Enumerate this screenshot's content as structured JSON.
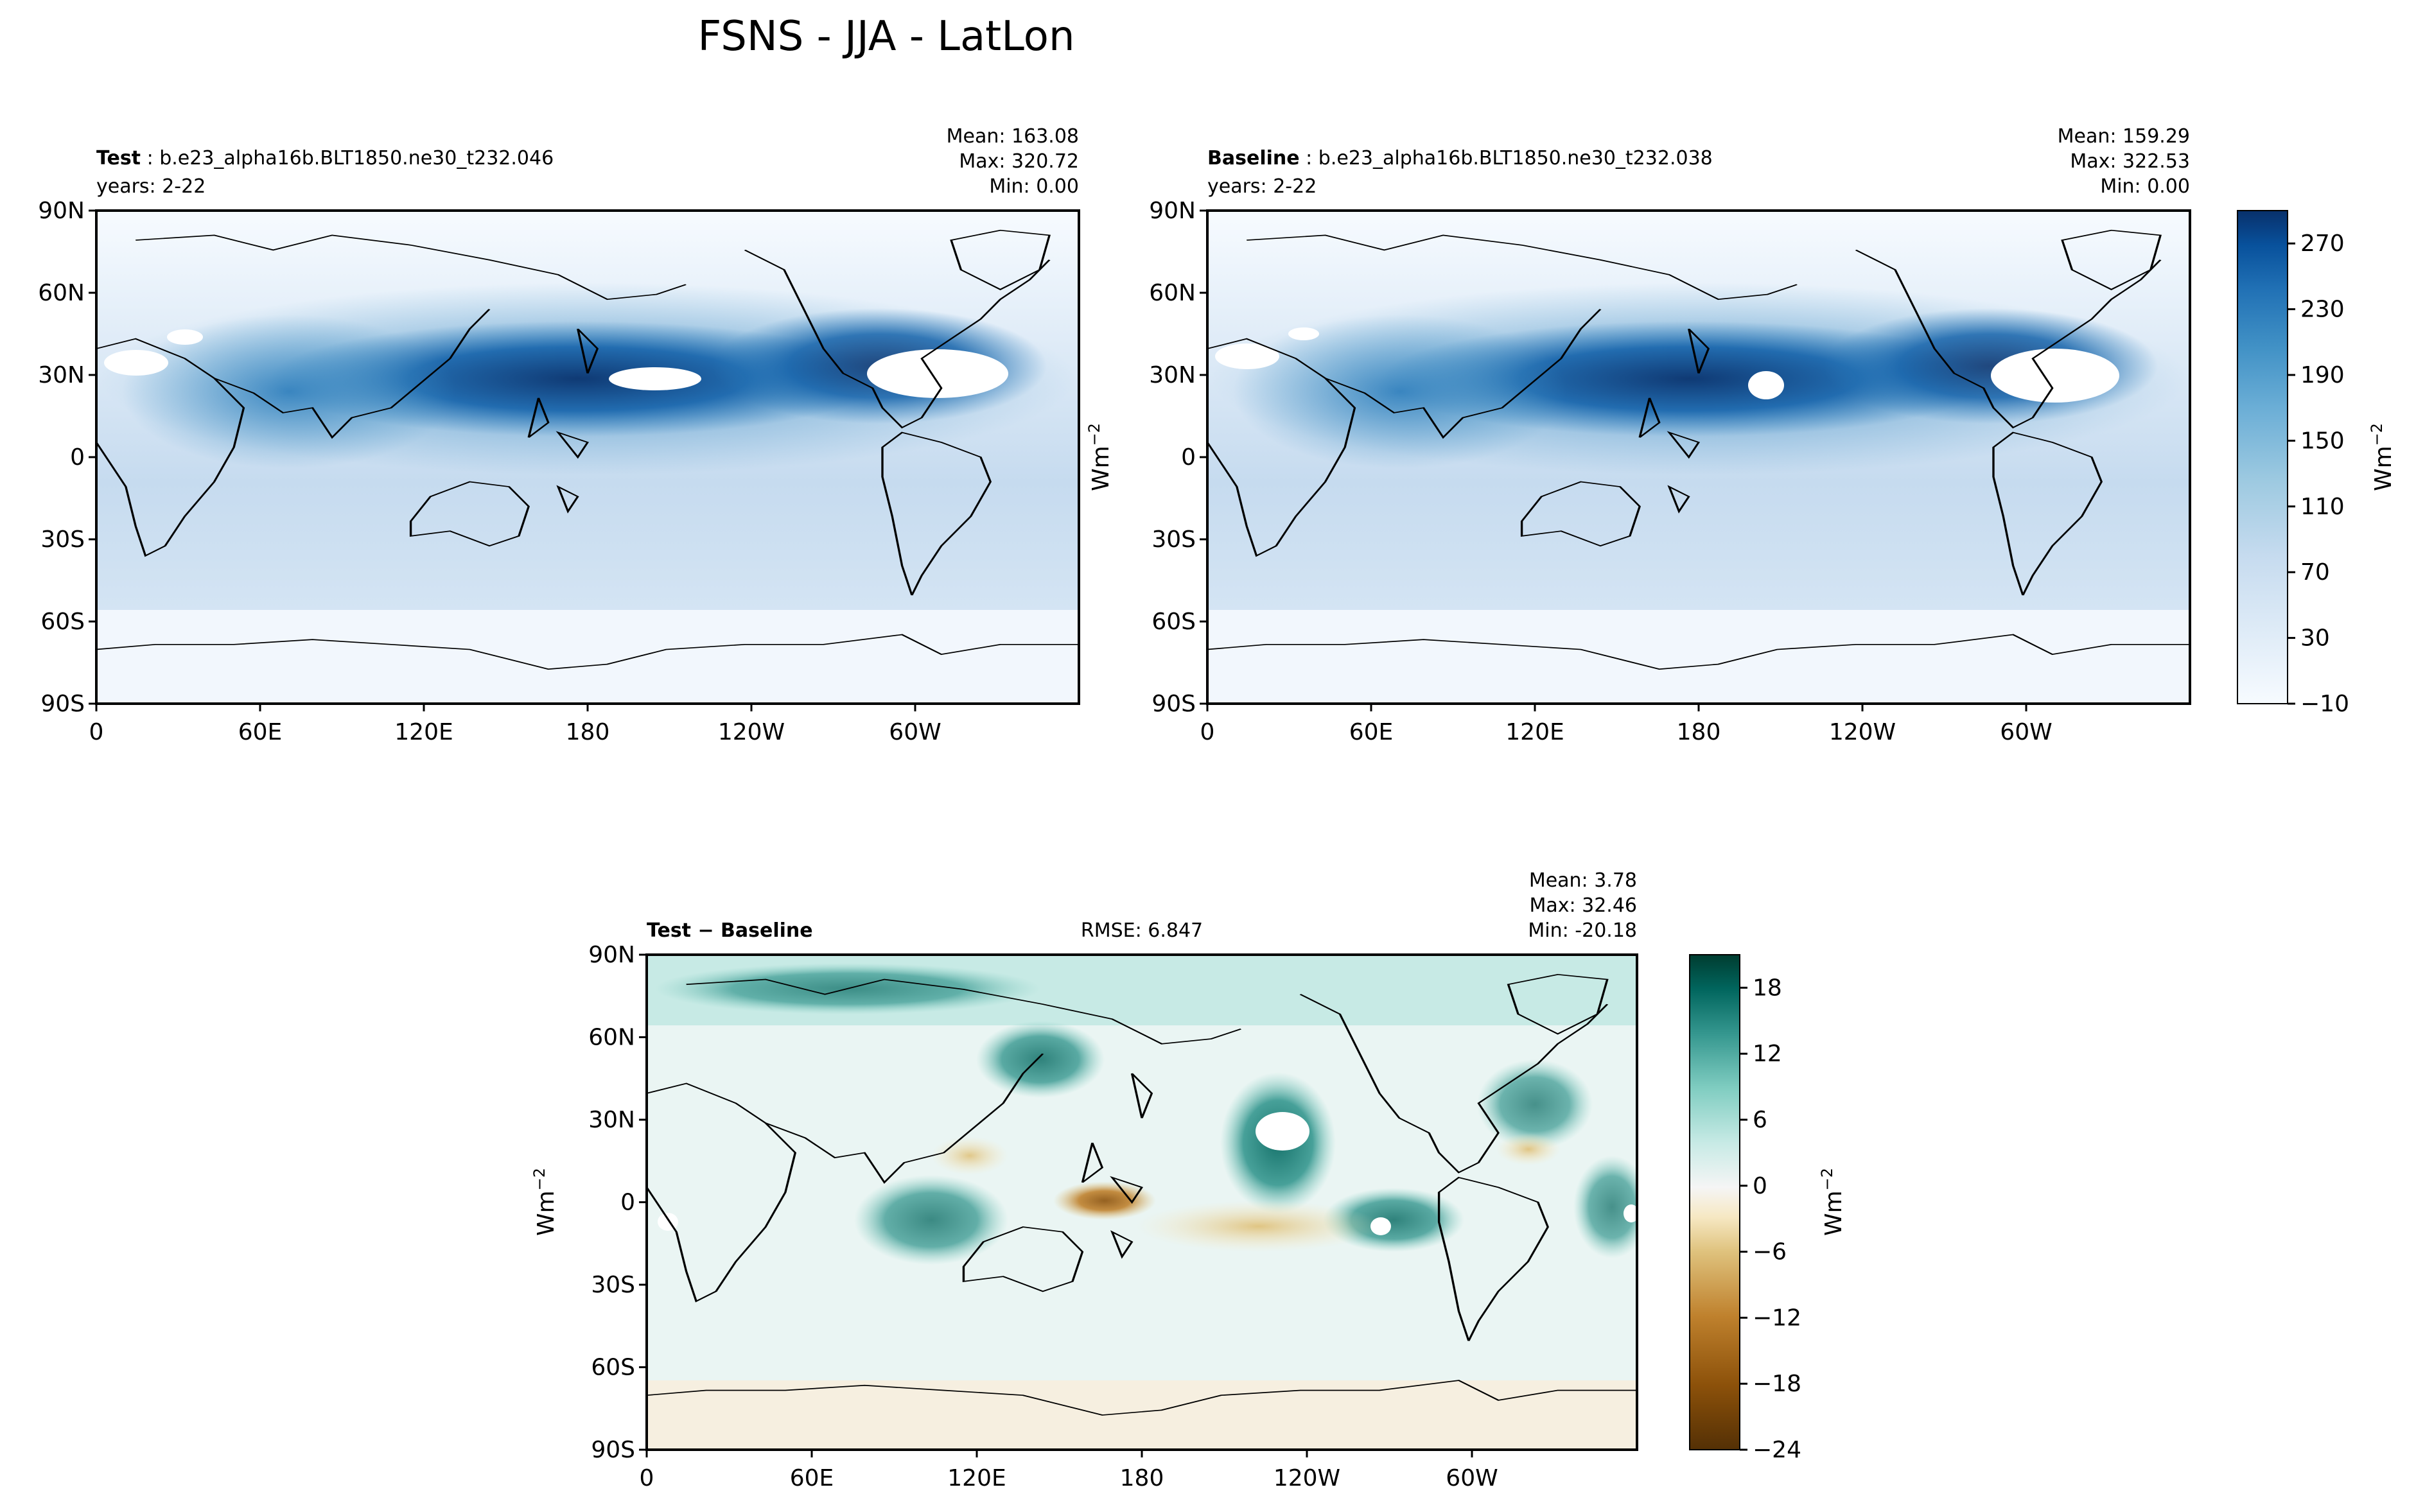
{
  "figure": {
    "title": "FSNS - JJA - LatLon"
  },
  "chart_data": [
    {
      "type": "heatmap",
      "panel": "test",
      "title_bold": "Test",
      "title_sep": " : ",
      "case": "b.e23_alpha16b.BLT1850.ne30_t232.046",
      "years": "years: 2-22",
      "stats": {
        "mean": "Mean: 163.08",
        "max": "Max: 320.72",
        "min": "Min:  0.00"
      },
      "xticks": [
        "0",
        "60E",
        "120E",
        "180",
        "120W",
        "60W"
      ],
      "xtick_values": [
        0,
        60,
        120,
        180,
        240,
        300
      ],
      "yticks": [
        "90N",
        "60N",
        "30N",
        "0",
        "30S",
        "60S",
        "90S"
      ],
      "ytick_values": [
        90,
        60,
        30,
        0,
        -30,
        -60,
        -90
      ],
      "xlim": [
        0,
        360
      ],
      "ylim": [
        -90,
        90
      ],
      "ylabel": "Wm$^{-2}$"
    },
    {
      "type": "heatmap",
      "panel": "baseline",
      "title_bold": "Baseline",
      "title_sep": " : ",
      "case": "b.e23_alpha16b.BLT1850.ne30_t232.038",
      "years": "years: 2-22",
      "stats": {
        "mean": "Mean: 159.29",
        "max": "Max: 322.53",
        "min": "Min:  0.00"
      },
      "xticks": [
        "0",
        "60E",
        "120E",
        "180",
        "120W",
        "60W"
      ],
      "xtick_values": [
        0,
        60,
        120,
        180,
        240,
        300
      ],
      "yticks": [
        "90N",
        "60N",
        "30N",
        "0",
        "30S",
        "60S",
        "90S"
      ],
      "ytick_values": [
        90,
        60,
        30,
        0,
        -30,
        -60,
        -90
      ],
      "xlim": [
        0,
        360
      ],
      "ylim": [
        -90,
        90
      ],
      "colorbar": {
        "label": "Wm$^{-2}$",
        "ticks": [
          "270",
          "230",
          "190",
          "150",
          "110",
          "70",
          "30",
          "−10"
        ],
        "tick_values": [
          270,
          230,
          190,
          150,
          110,
          70,
          30,
          -10
        ],
        "range": [
          -10,
          290
        ],
        "colormap": "Blues"
      }
    },
    {
      "type": "heatmap",
      "panel": "diff",
      "title_bold": "Test − Baseline",
      "rmse": "RMSE: 6.847",
      "stats": {
        "mean": "Mean:  3.78",
        "max": "Max: 32.46",
        "min": "Min: -20.18"
      },
      "xticks": [
        "0",
        "60E",
        "120E",
        "180",
        "120W",
        "60W"
      ],
      "xtick_values": [
        0,
        60,
        120,
        180,
        240,
        300
      ],
      "yticks": [
        "90N",
        "60N",
        "30N",
        "0",
        "30S",
        "60S",
        "90S"
      ],
      "ytick_values": [
        90,
        60,
        30,
        0,
        -30,
        -60,
        -90
      ],
      "xlim": [
        0,
        360
      ],
      "ylim": [
        -90,
        90
      ],
      "ylabel": "Wm$^{-2}$",
      "colorbar": {
        "label": "Wm$^{-2}$",
        "ticks": [
          "18",
          "12",
          "6",
          "0",
          "−6",
          "−12",
          "−18",
          "−24"
        ],
        "tick_values": [
          18,
          12,
          6,
          0,
          -6,
          -12,
          -18,
          -24
        ],
        "range": [
          -24,
          21
        ],
        "colormap": "BrBG"
      }
    }
  ],
  "colors": {
    "blues": [
      "#f7fbff",
      "#e3eef9",
      "#d0e1f2",
      "#b7d4ea",
      "#94c4df",
      "#6aaed6",
      "#4a98c9",
      "#2e7ebc",
      "#1764ab",
      "#084a91",
      "#08306b"
    ],
    "brbg": [
      "#543005",
      "#8c510a",
      "#bf812d",
      "#dfc27d",
      "#f6e8c3",
      "#f5f5f5",
      "#c7eae5",
      "#80cdc1",
      "#35978f",
      "#01665e",
      "#003c30"
    ]
  }
}
